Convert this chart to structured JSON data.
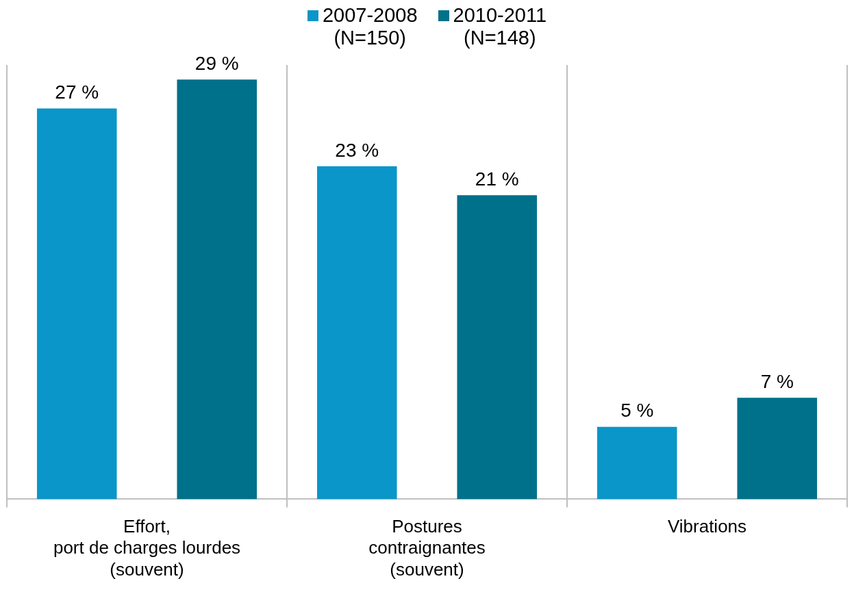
{
  "chart_data": {
    "type": "bar",
    "categories": [
      "Effort,\nport de charges lourdes\n(souvent)",
      "Postures\ncontraignantes\n(souvent)",
      "Vibrations"
    ],
    "series": [
      {
        "name": "2007-2008\n(N=150)",
        "color": "#0a96c8",
        "values": [
          27,
          23,
          5
        ],
        "value_labels": [
          "27 %",
          "23 %",
          "5 %"
        ]
      },
      {
        "name": "2010-2011\n(N=148)",
        "color": "#00718a",
        "values": [
          29,
          21,
          7
        ],
        "value_labels": [
          "29 %",
          "21 %",
          "7 %"
        ]
      }
    ],
    "grid": "x",
    "legend": "top"
  }
}
